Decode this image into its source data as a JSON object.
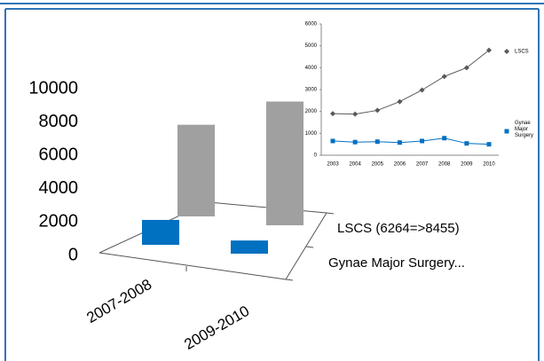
{
  "chart_data": [
    {
      "type": "bar3d",
      "categories": [
        "2007-2008",
        "2009-2010"
      ],
      "series": [
        {
          "name": "Gynae Major Surgery...",
          "color": "#0070c0",
          "values": [
            1700,
            900
          ]
        },
        {
          "name": "LSCS (6264=>8455)",
          "color": "#a0a0a0",
          "values": [
            6264,
            8455
          ]
        }
      ],
      "ylim": [
        0,
        10000
      ],
      "yticks": [
        0,
        2000,
        4000,
        6000,
        8000,
        10000
      ]
    },
    {
      "type": "line",
      "categories": [
        "2003",
        "2004",
        "2005",
        "2006",
        "2007",
        "2008",
        "2009",
        "2010"
      ],
      "series": [
        {
          "name": "LSCS",
          "color": "#595959",
          "marker": "diamond",
          "values": [
            1900,
            1880,
            2050,
            2450,
            2980,
            3600,
            4000,
            4800
          ]
        },
        {
          "name": "Gynae Major Surgery",
          "color": "#0070c0",
          "marker": "square",
          "values": [
            650,
            600,
            620,
            580,
            650,
            780,
            540,
            500
          ]
        }
      ],
      "ylim": [
        0,
        6000
      ],
      "yticks": [
        0,
        1000,
        2000,
        3000,
        4000,
        5000,
        6000
      ]
    }
  ]
}
